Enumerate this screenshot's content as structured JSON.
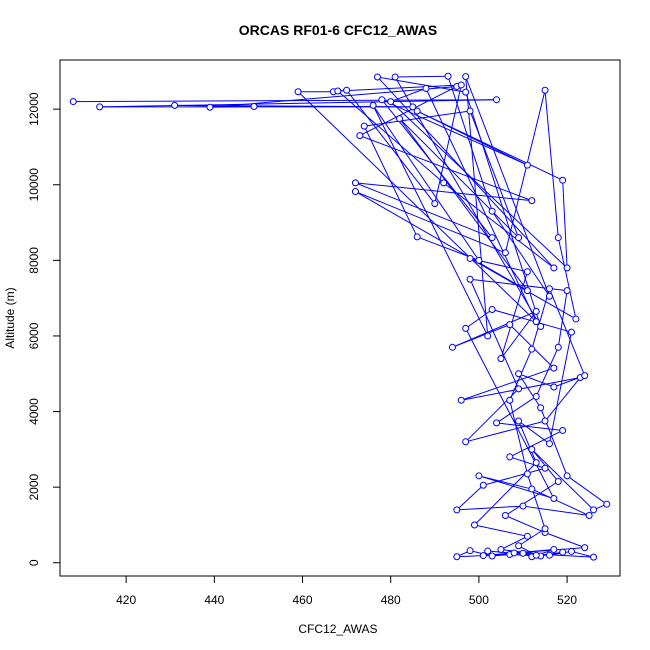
{
  "chart_data": {
    "type": "line",
    "title": "ORCAS RF01-6 CFC12_AWAS",
    "xlabel": "CFC12_AWAS",
    "ylabel": "Altitude (m)",
    "xlim": [
      405,
      532
    ],
    "ylim": [
      -350,
      13300
    ],
    "xticks": [
      420,
      440,
      460,
      480,
      500,
      520
    ],
    "yticks": [
      0,
      2000,
      4000,
      6000,
      8000,
      10000,
      12000
    ],
    "marker": "open-circle",
    "line_color": "#0000ff",
    "grid": false,
    "series": [
      {
        "points": [
          [
            408,
            12200
          ],
          [
            504,
            12250
          ],
          [
            414,
            12060
          ],
          [
            485,
            12060
          ],
          [
            431,
            12100
          ],
          [
            449,
            12070
          ],
          [
            439,
            12050
          ],
          [
            495,
            12600
          ],
          [
            473,
            11300
          ],
          [
            512,
            9580
          ],
          [
            472,
            10050
          ],
          [
            503,
            8600
          ],
          [
            478,
            12250
          ],
          [
            511,
            10520
          ],
          [
            486,
            11950
          ],
          [
            519,
            10120
          ],
          [
            520,
            7800
          ],
          [
            480,
            12200
          ],
          [
            488,
            12550
          ],
          [
            513,
            6380
          ],
          [
            459,
            12460
          ],
          [
            467,
            12460
          ],
          [
            470,
            12500
          ],
          [
            490,
            9500
          ],
          [
            496,
            12640
          ],
          [
            468,
            12480
          ],
          [
            492,
            10050
          ],
          [
            517,
            7800
          ],
          [
            477,
            12850
          ],
          [
            497,
            12450
          ],
          [
            514,
            6250
          ],
          [
            481,
            12850
          ],
          [
            493,
            12870
          ],
          [
            503,
            9300
          ],
          [
            516,
            7050
          ],
          [
            497,
            12860
          ],
          [
            502,
            6000
          ],
          [
            476,
            12100
          ],
          [
            500,
            8000
          ],
          [
            486,
            8620
          ],
          [
            474,
            11550
          ],
          [
            498,
            11950
          ],
          [
            509,
            8600
          ],
          [
            482,
            11750
          ],
          [
            511,
            7200
          ],
          [
            472,
            9820
          ],
          [
            506,
            8200
          ],
          [
            515,
            12500
          ],
          [
            518,
            8600
          ],
          [
            522,
            6450
          ],
          [
            498,
            8050
          ],
          [
            511,
            7700
          ],
          [
            505,
            5400
          ],
          [
            513,
            6650
          ],
          [
            494,
            5700
          ],
          [
            507,
            6300
          ],
          [
            517,
            5150
          ],
          [
            496,
            4300
          ],
          [
            523,
            4900
          ],
          [
            515,
            3750
          ],
          [
            497,
            3200
          ],
          [
            509,
            4600
          ],
          [
            498,
            7500
          ],
          [
            520,
            7200
          ],
          [
            518,
            5700
          ],
          [
            513,
            4400
          ],
          [
            504,
            3700
          ],
          [
            519,
            3500
          ],
          [
            507,
            2800
          ],
          [
            515,
            2500
          ],
          [
            501,
            2050
          ],
          [
            495,
            1400
          ],
          [
            510,
            1500
          ],
          [
            525,
            1250
          ],
          [
            512,
            1950
          ],
          [
            500,
            2300
          ],
          [
            517,
            1700
          ],
          [
            497,
            6200
          ],
          [
            503,
            6700
          ],
          [
            521,
            6100
          ],
          [
            516,
            3150
          ],
          [
            509,
            3750
          ],
          [
            513,
            2650
          ],
          [
            499,
            1000
          ],
          [
            511,
            700
          ],
          [
            505,
            350
          ],
          [
            516,
            200
          ],
          [
            521,
            300
          ],
          [
            526,
            150
          ],
          [
            510,
            250
          ],
          [
            503,
            180
          ],
          [
            498,
            320
          ],
          [
            495,
            160
          ],
          [
            507,
            220
          ],
          [
            514,
            180
          ],
          [
            519,
            280
          ],
          [
            512,
            160
          ],
          [
            517,
            350
          ],
          [
            501,
            190
          ],
          [
            508,
            260
          ],
          [
            524,
            400
          ],
          [
            515,
            800
          ],
          [
            506,
            1250
          ],
          [
            518,
            2150
          ],
          [
            512,
            3000
          ],
          [
            526,
            1400
          ],
          [
            529,
            1550
          ],
          [
            520,
            2300
          ],
          [
            514,
            4100
          ],
          [
            509,
            5000
          ],
          [
            517,
            4650
          ],
          [
            524,
            4950
          ],
          [
            516,
            7250
          ],
          [
            512,
            5650
          ],
          [
            507,
            4300
          ],
          [
            511,
            2350
          ],
          [
            515,
            900
          ],
          [
            509,
            450
          ],
          [
            513,
            200
          ],
          [
            502,
            310
          ]
        ]
      }
    ]
  }
}
